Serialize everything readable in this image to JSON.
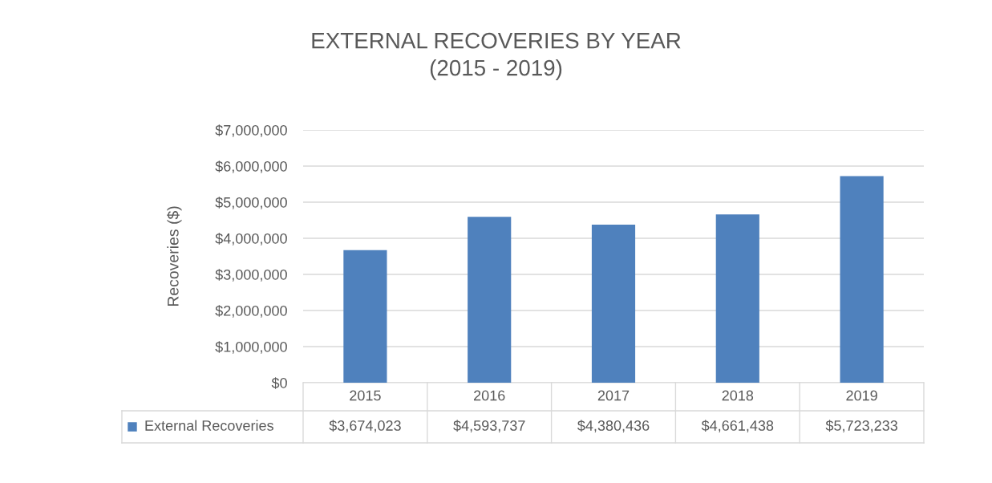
{
  "chart_data": {
    "type": "bar",
    "title": "EXTERNAL RECOVERIES BY YEAR\n(2015 - 2019)",
    "ylabel": "Recoveries ($)",
    "categories": [
      "2015",
      "2016",
      "2017",
      "2018",
      "2019"
    ],
    "series": [
      {
        "name": "External Recoveries",
        "color": "#4f81bd",
        "values": [
          3674023,
          4593737,
          4380436,
          4661438,
          5723233
        ],
        "value_labels": [
          "$3,674,023",
          "$4,593,737",
          "$4,380,436",
          "$4,661,438",
          "$5,723,233"
        ]
      }
    ],
    "ylim": [
      0,
      7000000
    ],
    "yticks": [
      {
        "value": 0,
        "label": "$0"
      },
      {
        "value": 1000000,
        "label": "$1,000,000"
      },
      {
        "value": 2000000,
        "label": "$2,000,000"
      },
      {
        "value": 3000000,
        "label": "$3,000,000"
      },
      {
        "value": 4000000,
        "label": "$4,000,000"
      },
      {
        "value": 5000000,
        "label": "$5,000,000"
      },
      {
        "value": 6000000,
        "label": "$6,000,000"
      },
      {
        "value": 7000000,
        "label": "$7,000,000"
      }
    ],
    "grid": "y",
    "legend": "bottom"
  }
}
